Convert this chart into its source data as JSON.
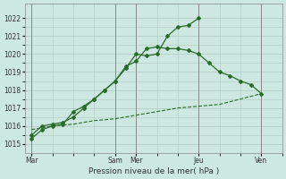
{
  "bg_color": "#cce8e0",
  "grid_color": "#b0c8c0",
  "line_color": "#2a6b2a",
  "xlabel": "Pression niveau de la mer( hPa )",
  "ylim": [
    1014.5,
    1022.8
  ],
  "yticks": [
    1015,
    1016,
    1017,
    1018,
    1019,
    1020,
    1021,
    1022
  ],
  "x_day_labels": [
    "Mar",
    "Sam",
    "Mer",
    "Jeu",
    "Ven"
  ],
  "x_day_positions": [
    0,
    24,
    30,
    48,
    66
  ],
  "xlim": [
    -2,
    72
  ],
  "series1_x": [
    0,
    3,
    6,
    9,
    12,
    15,
    18,
    21,
    24,
    27,
    30,
    33,
    36,
    39,
    42,
    45,
    48
  ],
  "series1_y": [
    1015.3,
    1015.8,
    1016.0,
    1016.1,
    1016.8,
    1017.1,
    1017.5,
    1018.0,
    1018.5,
    1019.2,
    1020.0,
    1019.9,
    1020.0,
    1021.0,
    1021.5,
    1021.6,
    1022.0
  ],
  "series2_x": [
    0,
    3,
    6,
    9,
    12,
    15,
    18,
    21,
    24,
    27,
    30,
    33,
    36,
    39,
    42,
    45,
    48,
    51,
    54,
    57,
    60,
    63,
    66
  ],
  "series2_y": [
    1015.5,
    1016.0,
    1016.1,
    1016.2,
    1016.5,
    1017.0,
    1017.5,
    1018.0,
    1018.5,
    1019.3,
    1019.6,
    1020.3,
    1020.4,
    1020.3,
    1020.3,
    1020.2,
    1020.0,
    1019.5,
    1019.0,
    1018.8,
    1018.5,
    1018.3,
    1017.8
  ],
  "series3_x": [
    0,
    6,
    12,
    18,
    24,
    30,
    36,
    42,
    48,
    54,
    60,
    66
  ],
  "series3_y": [
    1015.8,
    1016.0,
    1016.1,
    1016.3,
    1016.4,
    1016.6,
    1016.8,
    1017.0,
    1017.1,
    1017.2,
    1017.5,
    1017.8
  ]
}
